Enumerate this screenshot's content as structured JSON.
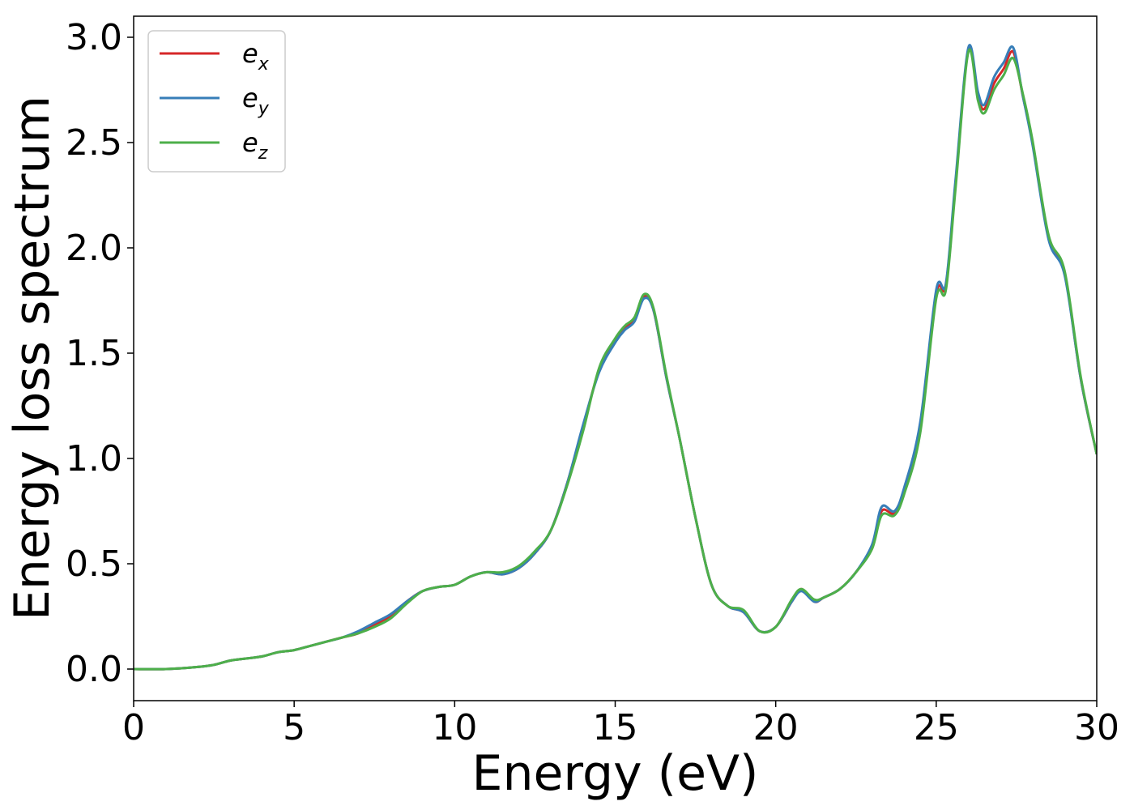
{
  "chart_data": {
    "type": "line",
    "title": "",
    "xlabel": "Energy (eV)",
    "ylabel": "Energy loss spectrum",
    "xlim": [
      0,
      30
    ],
    "ylim": [
      -0.15,
      3.1
    ],
    "xticks": [
      0,
      5,
      10,
      15,
      20,
      25,
      30
    ],
    "xtick_labels": [
      "0",
      "5",
      "10",
      "15",
      "20",
      "25",
      "30"
    ],
    "yticks": [
      0.0,
      0.5,
      1.0,
      1.5,
      2.0,
      2.5,
      3.0
    ],
    "ytick_labels": [
      "0.0",
      "0.5",
      "1.0",
      "1.5",
      "2.0",
      "2.5",
      "3.0"
    ],
    "grid": false,
    "legend_position": "top-left",
    "series": [
      {
        "name": "e_x",
        "color": "#d62728",
        "x": [
          0,
          1,
          2,
          2.5,
          3,
          3.5,
          4,
          4.5,
          5,
          5.5,
          6,
          6.5,
          7,
          7.5,
          8,
          8.5,
          9,
          9.5,
          10,
          10.5,
          11,
          11.5,
          12,
          12.5,
          13,
          13.5,
          14,
          14.5,
          15,
          15.3,
          15.6,
          15.9,
          16.2,
          16.6,
          17,
          17.5,
          18,
          18.5,
          19,
          19.5,
          20,
          20.5,
          20.8,
          21.2,
          21.5,
          22,
          22.5,
          23,
          23.3,
          23.7,
          24,
          24.5,
          25,
          25.3,
          25.6,
          26,
          26.3,
          26.5,
          26.8,
          27.1,
          27.4,
          27.7,
          28,
          28.5,
          29,
          29.5,
          30
        ],
        "y": [
          0.0,
          0.0,
          0.01,
          0.02,
          0.04,
          0.05,
          0.06,
          0.08,
          0.09,
          0.11,
          0.13,
          0.15,
          0.17,
          0.21,
          0.25,
          0.32,
          0.37,
          0.39,
          0.4,
          0.44,
          0.46,
          0.45,
          0.48,
          0.55,
          0.66,
          0.88,
          1.15,
          1.42,
          1.56,
          1.62,
          1.66,
          1.77,
          1.7,
          1.38,
          1.1,
          0.72,
          0.4,
          0.3,
          0.27,
          0.18,
          0.2,
          0.32,
          0.38,
          0.32,
          0.34,
          0.38,
          0.46,
          0.58,
          0.75,
          0.74,
          0.85,
          1.15,
          1.78,
          1.82,
          2.3,
          2.94,
          2.72,
          2.66,
          2.78,
          2.85,
          2.93,
          2.72,
          2.5,
          2.05,
          1.88,
          1.38,
          1.02
        ]
      },
      {
        "name": "e_y",
        "color": "#377eb8",
        "x": [
          0,
          1,
          2,
          2.5,
          3,
          3.5,
          4,
          4.5,
          5,
          5.5,
          6,
          6.5,
          7,
          7.5,
          8,
          8.5,
          9,
          9.5,
          10,
          10.5,
          11,
          11.5,
          12,
          12.5,
          13,
          13.5,
          14,
          14.5,
          15,
          15.3,
          15.6,
          15.9,
          16.2,
          16.6,
          17,
          17.5,
          18,
          18.5,
          19,
          19.5,
          20,
          20.5,
          20.8,
          21.2,
          21.5,
          22,
          22.5,
          23,
          23.3,
          23.7,
          24,
          24.5,
          25,
          25.3,
          25.6,
          26,
          26.3,
          26.5,
          26.8,
          27.1,
          27.4,
          27.7,
          28,
          28.5,
          29,
          29.5,
          30
        ],
        "y": [
          0.0,
          0.0,
          0.01,
          0.02,
          0.04,
          0.05,
          0.06,
          0.08,
          0.09,
          0.11,
          0.13,
          0.15,
          0.18,
          0.22,
          0.26,
          0.32,
          0.37,
          0.39,
          0.4,
          0.44,
          0.46,
          0.45,
          0.48,
          0.55,
          0.66,
          0.88,
          1.16,
          1.41,
          1.55,
          1.61,
          1.65,
          1.76,
          1.7,
          1.38,
          1.1,
          0.72,
          0.4,
          0.3,
          0.27,
          0.18,
          0.2,
          0.32,
          0.37,
          0.32,
          0.34,
          0.38,
          0.46,
          0.59,
          0.77,
          0.75,
          0.86,
          1.17,
          1.8,
          1.83,
          2.32,
          2.95,
          2.74,
          2.68,
          2.81,
          2.88,
          2.95,
          2.72,
          2.49,
          2.04,
          1.87,
          1.38,
          1.02
        ]
      },
      {
        "name": "e_z",
        "color": "#4daf4a",
        "x": [
          0,
          1,
          2,
          2.5,
          3,
          3.5,
          4,
          4.5,
          5,
          5.5,
          6,
          6.5,
          7,
          7.5,
          8,
          8.5,
          9,
          9.5,
          10,
          10.5,
          11,
          11.5,
          12,
          12.5,
          13,
          13.5,
          14,
          14.5,
          15,
          15.3,
          15.6,
          15.9,
          16.2,
          16.6,
          17,
          17.5,
          18,
          18.5,
          19,
          19.5,
          20,
          20.5,
          20.8,
          21.2,
          21.5,
          22,
          22.5,
          23,
          23.3,
          23.7,
          24,
          24.5,
          25,
          25.3,
          25.6,
          26,
          26.3,
          26.5,
          26.8,
          27.1,
          27.4,
          27.7,
          28,
          28.5,
          29,
          29.5,
          30
        ],
        "y": [
          0.0,
          0.0,
          0.01,
          0.02,
          0.04,
          0.05,
          0.06,
          0.08,
          0.09,
          0.11,
          0.13,
          0.15,
          0.17,
          0.2,
          0.24,
          0.31,
          0.37,
          0.39,
          0.4,
          0.44,
          0.46,
          0.46,
          0.49,
          0.56,
          0.66,
          0.87,
          1.13,
          1.43,
          1.57,
          1.63,
          1.67,
          1.78,
          1.71,
          1.39,
          1.1,
          0.72,
          0.4,
          0.3,
          0.28,
          0.18,
          0.2,
          0.33,
          0.38,
          0.33,
          0.34,
          0.38,
          0.46,
          0.57,
          0.73,
          0.73,
          0.83,
          1.12,
          1.76,
          1.8,
          2.28,
          2.93,
          2.7,
          2.64,
          2.75,
          2.82,
          2.9,
          2.73,
          2.51,
          2.06,
          1.89,
          1.39,
          1.02
        ]
      }
    ]
  }
}
